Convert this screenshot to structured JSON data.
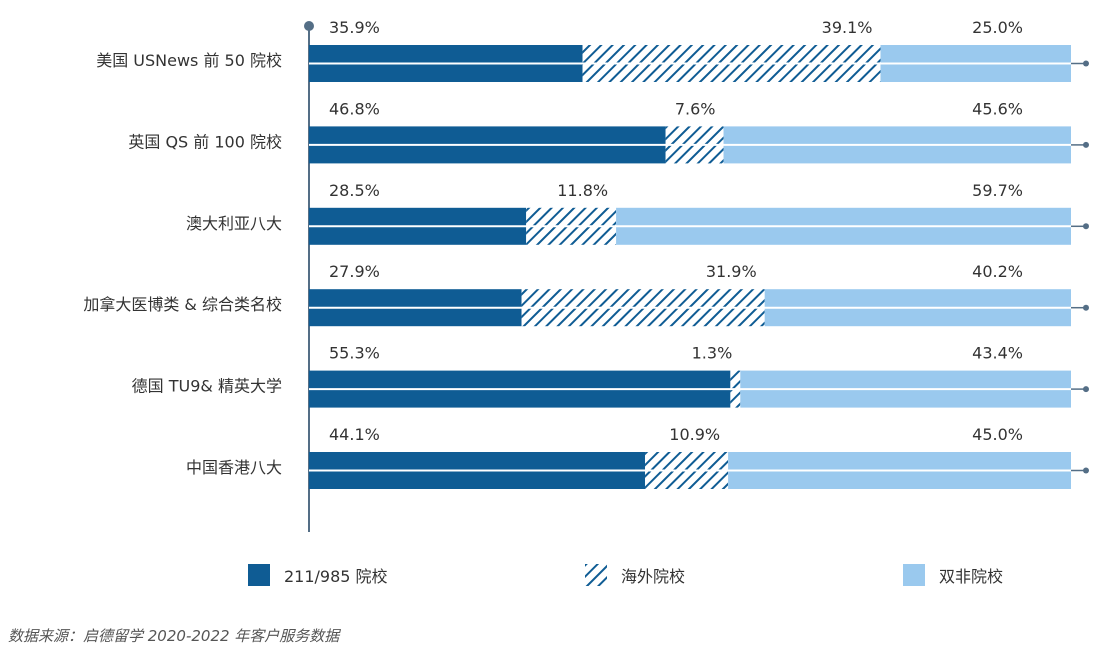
{
  "chart_data": {
    "type": "bar",
    "orientation": "horizontal",
    "stacked": "100%",
    "categories": [
      "美国 USNews 前 50 院校",
      "英国 QS 前 100 院校",
      "澳大利亚八大",
      "加拿大医博类 & 综合类名校",
      "德国 TU9& 精英大学",
      "中国香港八大"
    ],
    "series": [
      {
        "name": "211/985 院校",
        "values": [
          35.9,
          46.8,
          28.5,
          27.9,
          55.3,
          44.1
        ],
        "labels": [
          "35.9%",
          "46.8%",
          "28.5%",
          "27.9%",
          "55.3%",
          "44.1%"
        ],
        "color": "#0f5c94",
        "pattern": "solid"
      },
      {
        "name": "海外院校",
        "values": [
          39.1,
          7.6,
          11.8,
          31.9,
          1.3,
          10.9
        ],
        "labels": [
          "39.1%",
          "7.6%",
          "11.8%",
          "31.9%",
          "1.3%",
          "10.9%"
        ],
        "color": "#0f5c94",
        "pattern": "hatched"
      },
      {
        "name": "双非院校",
        "values": [
          25.0,
          45.6,
          59.7,
          40.2,
          43.4,
          45.0
        ],
        "labels": [
          "25.0%",
          "45.6%",
          "59.7%",
          "40.2%",
          "43.4%",
          "45.0%"
        ],
        "color": "#9ac9ee",
        "pattern": "solid"
      }
    ],
    "xlim": [
      0,
      100
    ],
    "grid": false,
    "legend_position": "bottom"
  },
  "legend": {
    "items": [
      {
        "label": "211/985 院校",
        "swatch": "solid-dark"
      },
      {
        "label": "海外院校",
        "swatch": "hatched"
      },
      {
        "label": "双非院校",
        "swatch": "solid-light"
      }
    ]
  },
  "source_text": "数据来源：启德留学 2020-2022 年客户服务数据",
  "colors": {
    "dark": "#0f5c94",
    "light": "#9ac9ee",
    "axis": "#546e86",
    "text": "#333333"
  }
}
